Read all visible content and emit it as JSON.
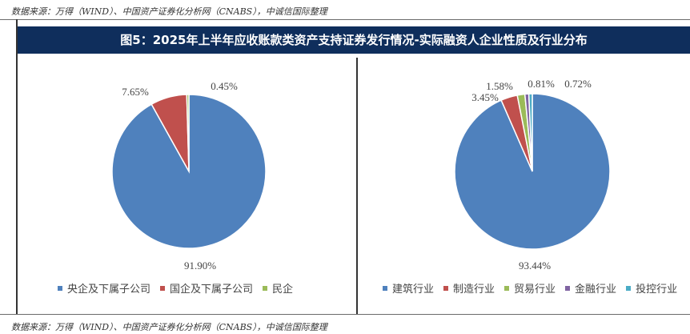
{
  "source_top": "数据来源：万得（WIND）、中国资产证券化分析网（CNABS），中诚信国际整理",
  "source_bottom": "数据来源：万得（WIND）、中国资产证券化分析网（CNABS），中诚信国际整理",
  "title": "图5：2025年上半年应收账款类资产支持证券发行情况-实际融资人企业性质及行业分布",
  "chart_data": [
    {
      "type": "pie",
      "categories": [
        "央企及下属子公司",
        "国企及下属子公司",
        "民企"
      ],
      "values": [
        91.9,
        7.65,
        0.45
      ],
      "labels": [
        "91.90%",
        "7.65%",
        "0.45%"
      ],
      "colors": [
        "#4f81bd",
        "#c0504d",
        "#9bbb59"
      ],
      "legend_position": "bottom"
    },
    {
      "type": "pie",
      "categories": [
        "建筑行业",
        "制造行业",
        "贸易行业",
        "金融行业",
        "投控行业"
      ],
      "values": [
        93.44,
        3.45,
        1.58,
        0.81,
        0.72
      ],
      "labels": [
        "93.44%",
        "3.45%",
        "1.58%",
        "0.81%",
        "0.72%"
      ],
      "colors": [
        "#4f81bd",
        "#c0504d",
        "#9bbb59",
        "#8064a2",
        "#4bacc6"
      ],
      "legend_position": "bottom"
    }
  ]
}
